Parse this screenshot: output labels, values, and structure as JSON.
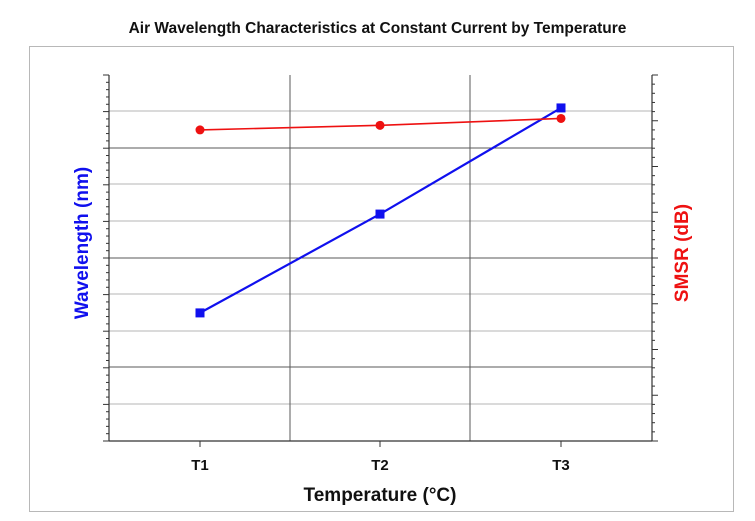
{
  "chart_data": {
    "type": "line",
    "title": "Air Wavelength Characteristics at Constant Current by Temperature",
    "xlabel": "Temperature (°C)",
    "ylabel_left": "Wavelength (nm)",
    "ylabel_right": "SMSR (dB)",
    "categories": [
      "T1",
      "T2",
      "T3"
    ],
    "grid": true,
    "legend": "none",
    "series": [
      {
        "axis": "left",
        "marker": "square",
        "color": "#1010ee",
        "values": [
          3.5,
          6.2,
          9.1
        ]
      },
      {
        "axis": "right",
        "marker": "circle",
        "color": "#ee1111",
        "values": [
          6.8,
          6.9,
          7.05
        ]
      }
    ],
    "ylim_left": [
      0,
      10
    ],
    "ylim_right": [
      0,
      8
    ]
  },
  "colors": {
    "wavelength": "#1010ee",
    "smsr": "#ee1111",
    "grid": "#b4b4b4",
    "axis": "#333333"
  }
}
